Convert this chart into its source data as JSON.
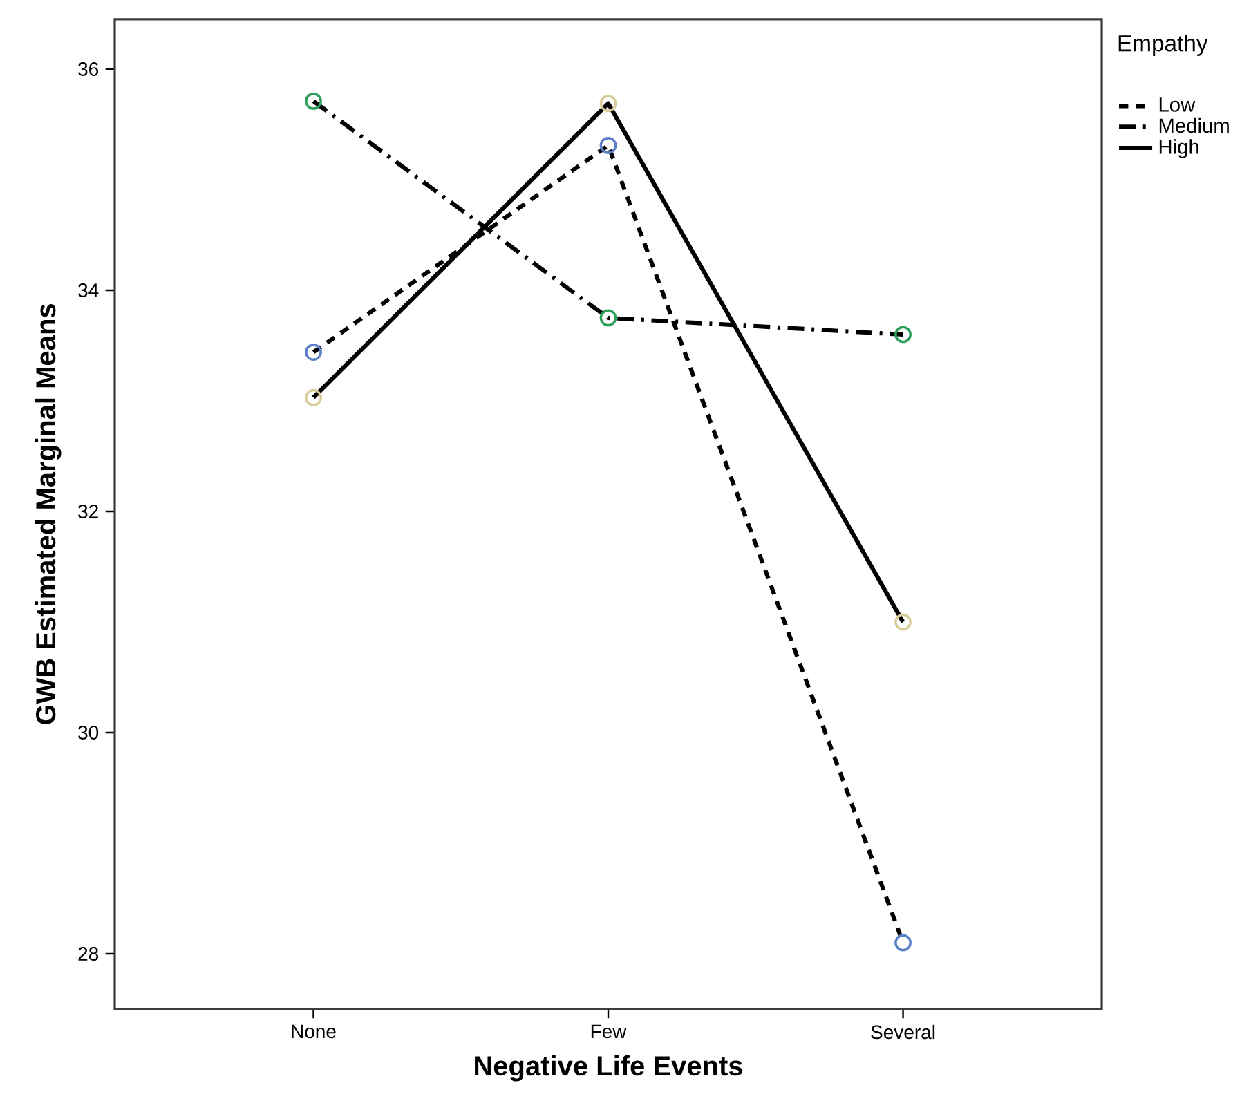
{
  "chart_data": {
    "type": "line",
    "xlabel": "Negative Life Events",
    "ylabel": "GWB Estimated Marginal Means",
    "legend_title": "Empathy",
    "categories": [
      "None",
      "Few",
      "Several"
    ],
    "series": [
      {
        "name": "Low",
        "color": "#000000",
        "line_style": "dashed",
        "colors": [
          "#5b7fc8",
          "#5b7fc8",
          "#5b7fc8"
        ],
        "values": [
          33.44,
          35.31,
          28.1
        ]
      },
      {
        "name": "Medium",
        "color": "#000000",
        "line_style": "dashdot",
        "colors": [
          "#2ca05a",
          "#2ca05a",
          "#2ca05a"
        ],
        "values": [
          35.71,
          33.75,
          33.6
        ]
      },
      {
        "name": "High",
        "color": "#000000",
        "line_style": "solid",
        "colors": [
          "#d8cc98",
          "#d8cc98",
          "#d8cc98"
        ],
        "values": [
          33.03,
          35.69,
          31.0
        ]
      }
    ],
    "ylim": [
      27.5,
      36.45
    ],
    "yticks": [
      28,
      30,
      32,
      34,
      36
    ],
    "marker": "circle",
    "legend": "top right",
    "grid": false
  }
}
